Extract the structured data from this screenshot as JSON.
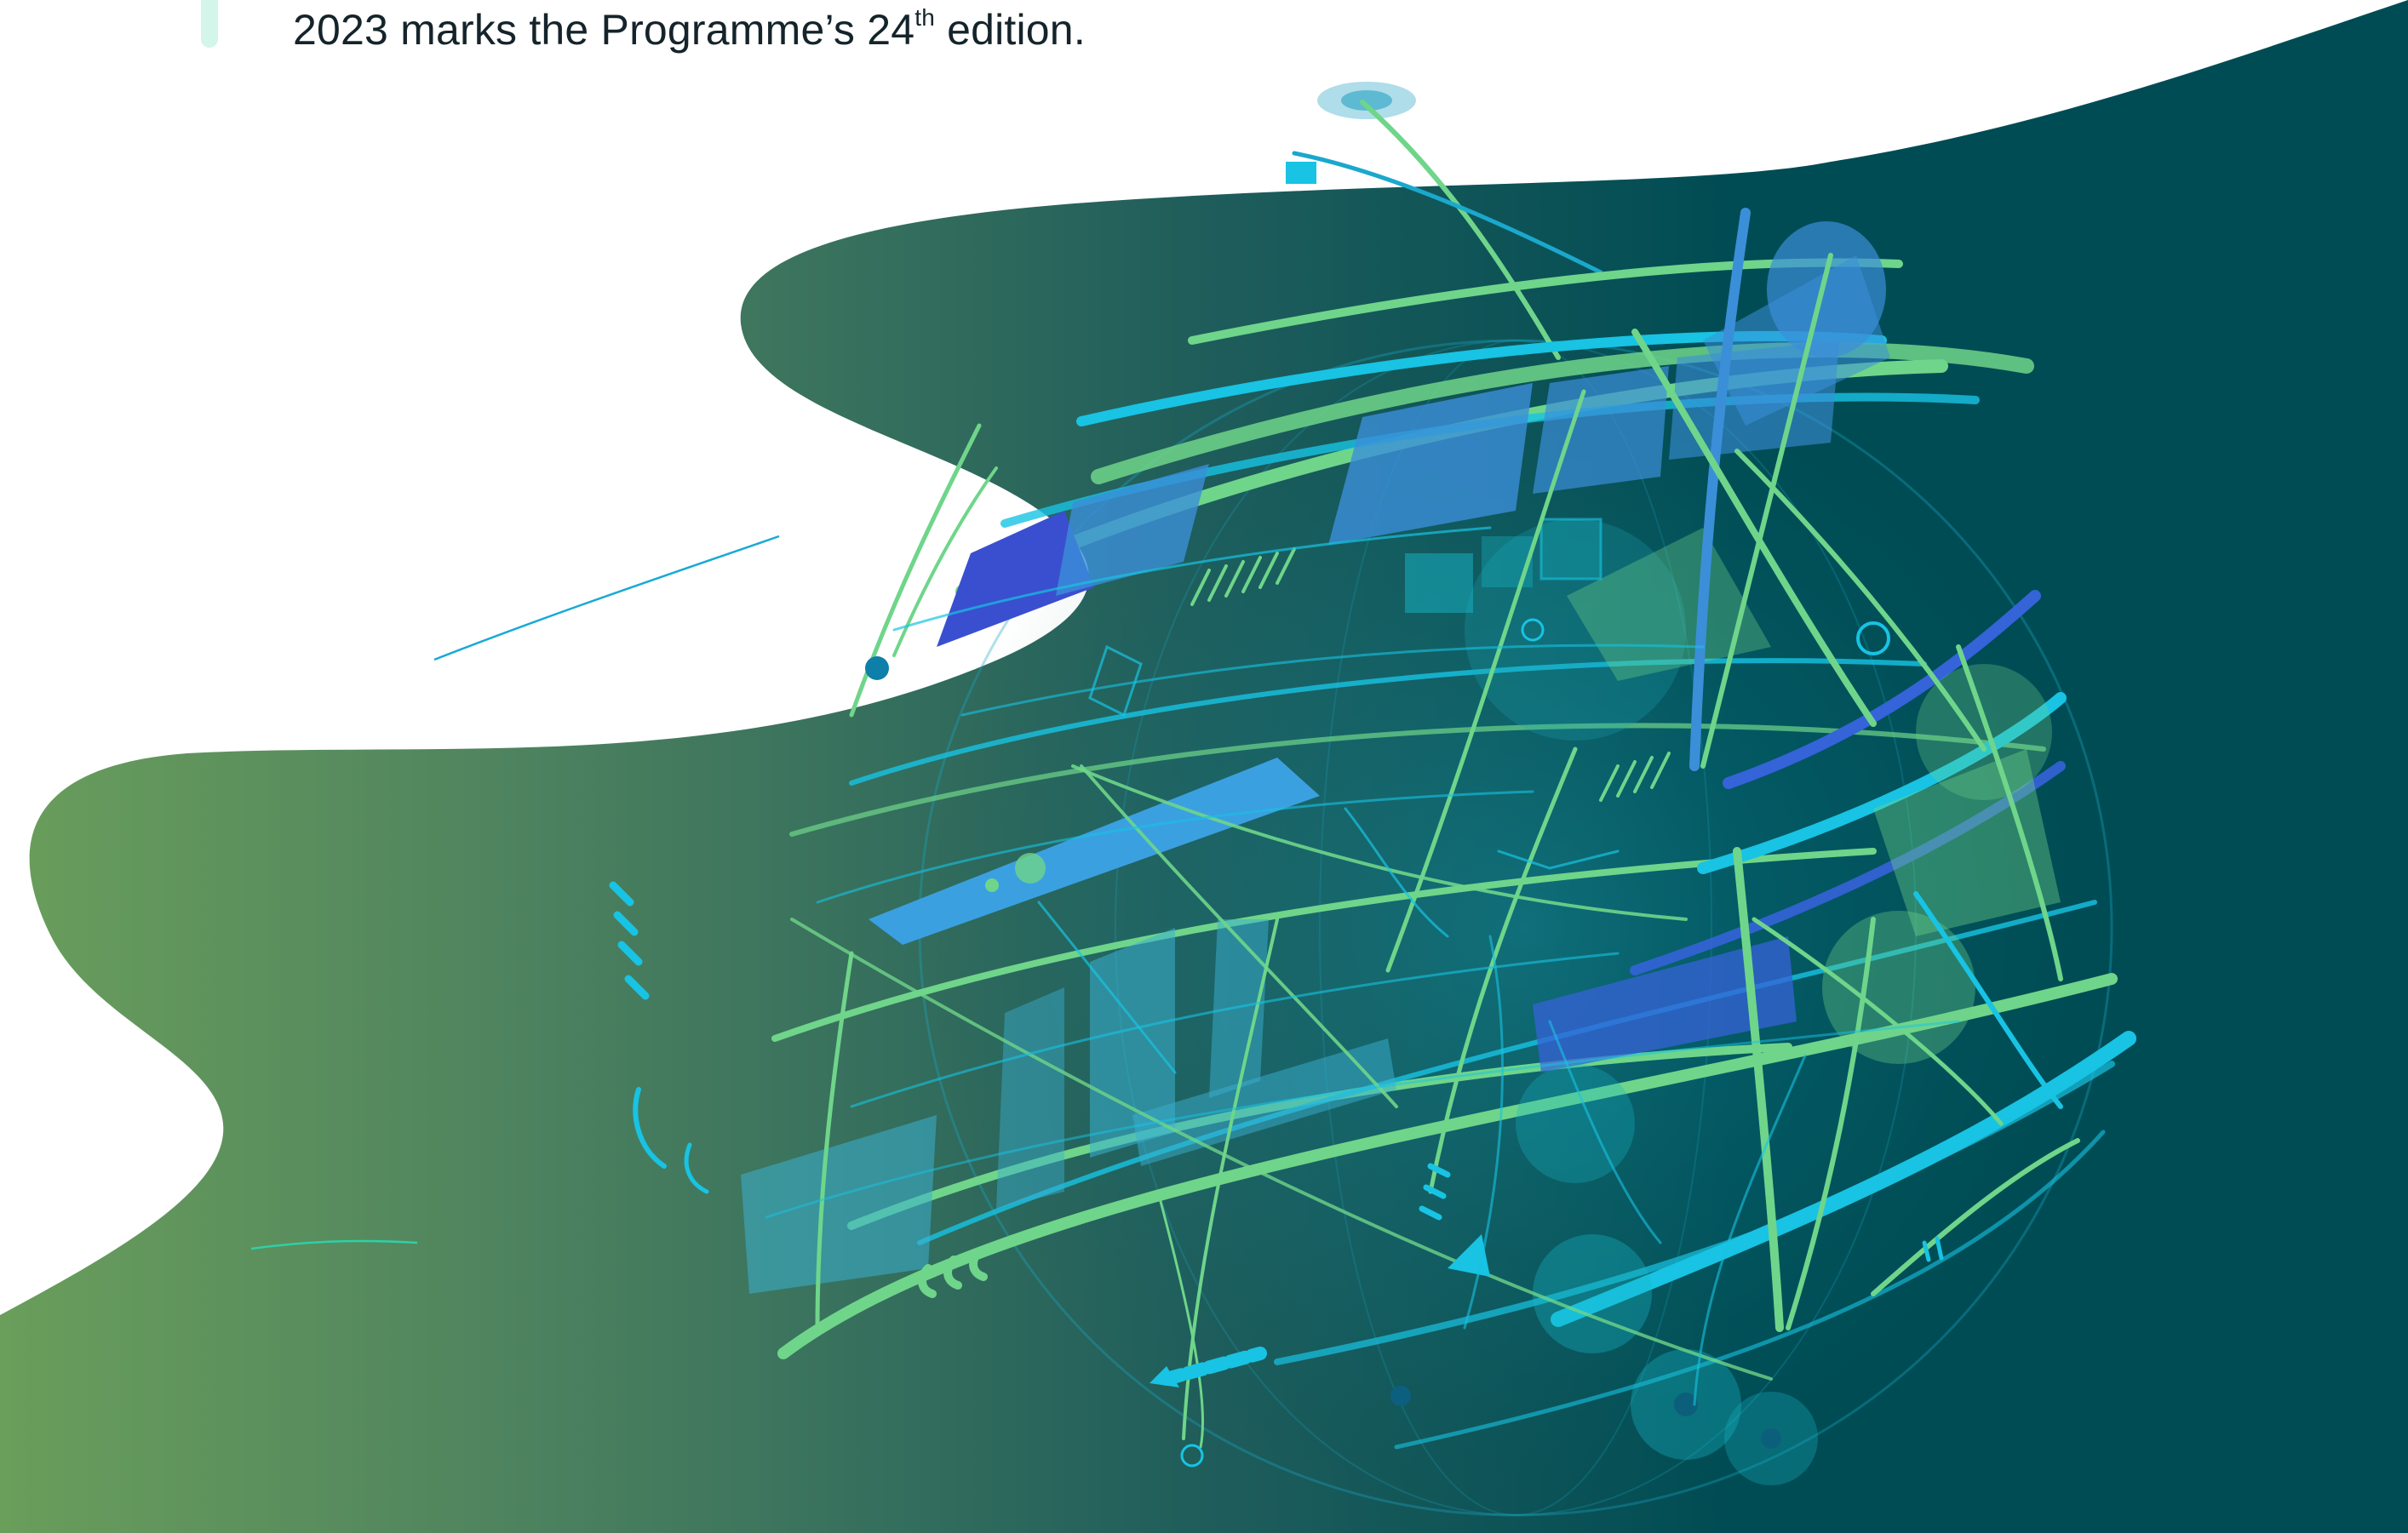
{
  "intro": {
    "text_before": "2023 marks the Programme’s 24",
    "superscript": "th",
    "text_after": " edition."
  },
  "colors": {
    "accent_bar": "#d3f5ea",
    "wave_light": "#6a9e5b",
    "wave_dark": "#004c54",
    "globe_green": "#6fd58a",
    "globe_cyan": "#18c3e3",
    "globe_blue": "#3563d8"
  },
  "illustration": {
    "subject": "globe-with-data-rings",
    "background": "green-teal-wave"
  }
}
